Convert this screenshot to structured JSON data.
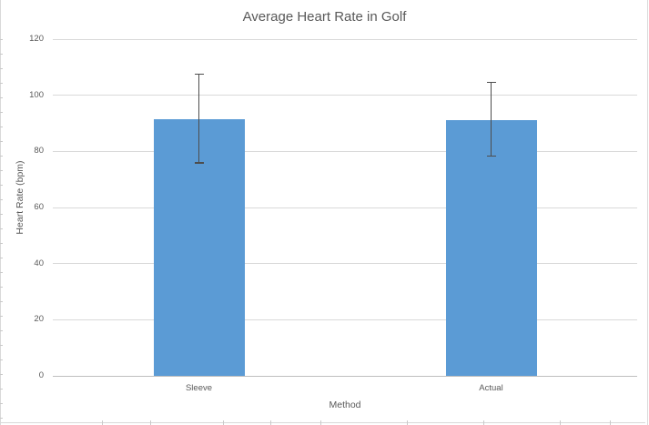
{
  "chart_data": {
    "type": "bar",
    "title": "Average Heart Rate in Golf",
    "xlabel": "Method",
    "ylabel": "Heart Rate (bpm)",
    "categories": [
      "Sleeve",
      "Actual"
    ],
    "values": [
      91.5,
      91.2
    ],
    "error_plus": [
      16.0,
      13.4
    ],
    "error_minus": [
      15.6,
      12.8
    ],
    "ylim": [
      0,
      120
    ],
    "ytick_step": 20,
    "yticks": [
      0,
      20,
      40,
      60,
      80,
      100,
      120
    ],
    "grid": true,
    "legend": "none",
    "colors": {
      "bar_fill": "#5B9BD5",
      "error_bar": "#4D4D4D",
      "gridline": "#D9D9D9",
      "axis_line": "#BFBFBF",
      "text": "#595959",
      "chart_border": "#D9D9D9",
      "sheet_tick": "#C9C9C9"
    }
  }
}
